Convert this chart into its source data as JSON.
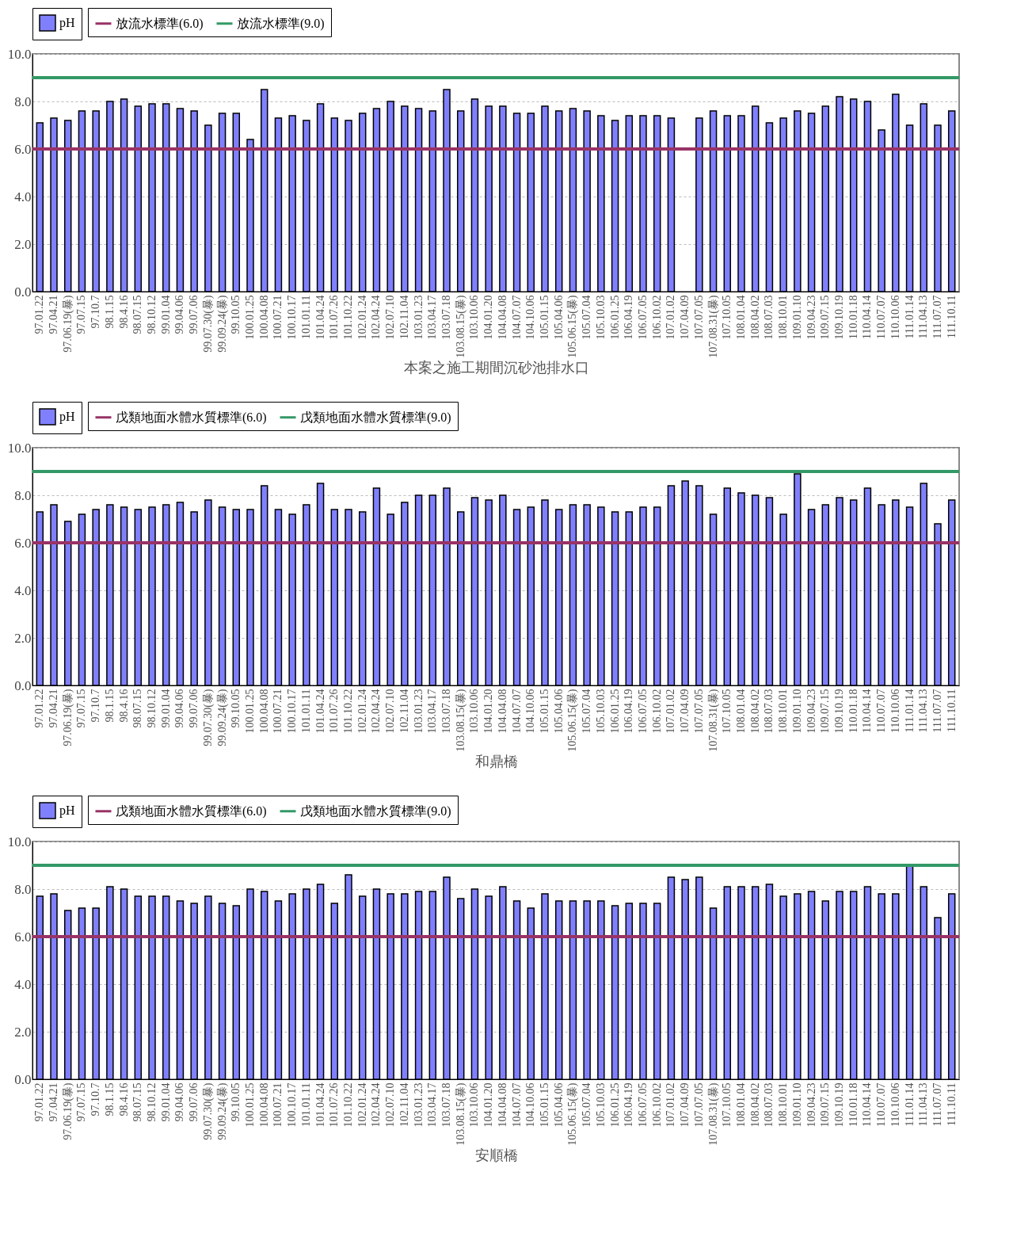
{
  "chart_data": [
    {
      "type": "bar",
      "xlabel": "本案之施工期間沉砂池排水口",
      "legend": "top",
      "grid": "y",
      "categories": [
        "97.01.22",
        "97.04.21",
        "97.06.19(暴)",
        "97.07.15",
        "97.10.7",
        "98.1.15",
        "98.4.16",
        "98.07.15",
        "98.10.12",
        "99.01.04",
        "99.04.06",
        "99.07.06",
        "99.07.30(暴)",
        "99.09.24(暴)",
        "99.10.05",
        "100.01.25",
        "100.04.08",
        "100.07.21",
        "100.10.17",
        "101.01.11",
        "101.04.24",
        "101.07.26",
        "101.10.22",
        "102.01.24",
        "102.04.24",
        "102.07.10",
        "102.11.04",
        "103.01.23",
        "103.04.17",
        "103.07.18",
        "103.08.15(暴)",
        "103.10.06",
        "104.01.20",
        "104.04.08",
        "104.07.07",
        "104.10.06",
        "105.01.15",
        "105.04.06",
        "105.06.15(暴)",
        "105.07.04",
        "105.10.03",
        "106.01.25",
        "106.04.19",
        "106.07.05",
        "106.10.02",
        "107.01.02",
        "107.04.09",
        "107.07.05",
        "107.08.31(暴)",
        "107.10.05",
        "108.01.04",
        "108.04.02",
        "108.07.03",
        "108.10.01",
        "109.01.10",
        "109.04.23",
        "109.07.15",
        "109.10.19",
        "110.01.18",
        "110.04.14",
        "110.07.07",
        "110.10.06",
        "111.01.14",
        "111.04.13",
        "111.07.07",
        "111.10.11"
      ],
      "series": [
        {
          "name": "pH",
          "color": "#8080ff",
          "values": [
            7.1,
            7.3,
            7.2,
            7.6,
            7.6,
            8.0,
            8.1,
            7.8,
            7.9,
            7.9,
            7.7,
            7.6,
            7.0,
            7.5,
            7.5,
            6.4,
            8.5,
            7.3,
            7.4,
            7.2,
            7.9,
            7.3,
            7.2,
            7.5,
            7.7,
            8.0,
            7.8,
            7.7,
            7.6,
            8.5,
            7.6,
            8.1,
            7.8,
            7.8,
            7.5,
            7.5,
            7.8,
            7.6,
            7.7,
            7.6,
            7.4,
            7.2,
            7.4,
            7.4,
            7.4,
            7.3,
            null,
            7.3,
            7.6,
            7.4,
            7.4,
            7.8,
            7.1,
            7.3,
            7.6,
            7.5,
            7.8,
            8.2,
            8.1,
            8.0,
            6.8,
            8.3,
            7.0,
            7.9,
            7.0,
            7.6
          ]
        }
      ],
      "ref_lines": [
        {
          "axis": "y",
          "value": 6.0,
          "label": "放流水標準(6.0)",
          "color": "#993366"
        },
        {
          "axis": "y",
          "value": 9.0,
          "label": "放流水標準(9.0)",
          "color": "#339966"
        }
      ],
      "ylim": [
        0,
        10
      ],
      "yticks": [
        {
          "value": 0,
          "label": "0.0"
        },
        {
          "value": 2,
          "label": "2.0"
        },
        {
          "value": 4,
          "label": "4.0"
        },
        {
          "value": 6,
          "label": "6.0"
        },
        {
          "value": 8,
          "label": "8.0"
        },
        {
          "value": 10,
          "label": "10.0"
        }
      ]
    },
    {
      "type": "bar",
      "xlabel": "和鼎橋",
      "legend": "top",
      "grid": "y",
      "categories": [
        "97.01.22",
        "97.04.21",
        "97.06.19(暴)",
        "97.07.15",
        "97.10.7",
        "98.1.15",
        "98.4.16",
        "98.07.15",
        "98.10.12",
        "99.01.04",
        "99.04.06",
        "99.07.06",
        "99.07.30(暴)",
        "99.09.24(暴)",
        "99.10.05",
        "100.01.25",
        "100.04.08",
        "100.07.21",
        "100.10.17",
        "101.01.11",
        "101.04.24",
        "101.07.26",
        "101.10.22",
        "102.01.24",
        "102.04.24",
        "102.07.10",
        "102.11.04",
        "103.01.23",
        "103.04.17",
        "103.07.18",
        "103.08.15(暴)",
        "103.10.06",
        "104.01.20",
        "104.04.08",
        "104.07.07",
        "104.10.06",
        "105.01.15",
        "105.04.06",
        "105.06.15(暴)",
        "105.07.04",
        "105.10.03",
        "106.01.25",
        "106.04.19",
        "106.07.05",
        "106.10.02",
        "107.01.02",
        "107.04.09",
        "107.07.05",
        "107.08.31(暴)",
        "107.10.05",
        "108.01.04",
        "108.04.02",
        "108.07.03",
        "108.10.01",
        "109.01.10",
        "109.04.23",
        "109.07.15",
        "109.10.19",
        "110.01.18",
        "110.04.14",
        "110.07.07",
        "110.10.06",
        "111.01.14",
        "111.04.13",
        "111.07.07",
        "111.10.11"
      ],
      "series": [
        {
          "name": "pH",
          "color": "#8080ff",
          "values": [
            7.3,
            7.6,
            6.9,
            7.2,
            7.4,
            7.6,
            7.5,
            7.4,
            7.5,
            7.6,
            7.7,
            7.3,
            7.8,
            7.5,
            7.4,
            7.4,
            8.4,
            7.4,
            7.2,
            7.6,
            8.5,
            7.4,
            7.4,
            7.3,
            8.3,
            7.2,
            7.7,
            8.0,
            8.0,
            8.3,
            7.3,
            7.9,
            7.8,
            8.0,
            7.4,
            7.5,
            7.8,
            7.4,
            7.6,
            7.6,
            7.5,
            7.3,
            7.3,
            7.5,
            7.5,
            8.4,
            8.6,
            8.4,
            7.2,
            8.3,
            8.1,
            8.0,
            7.9,
            7.2,
            8.9,
            7.4,
            7.6,
            7.9,
            7.8,
            8.3,
            7.6,
            7.8,
            7.5,
            8.5,
            6.8,
            7.8
          ]
        }
      ],
      "ref_lines": [
        {
          "axis": "y",
          "value": 6.0,
          "label": "戊類地面水體水質標準(6.0)",
          "color": "#993366"
        },
        {
          "axis": "y",
          "value": 9.0,
          "label": "戊類地面水體水質標準(9.0)",
          "color": "#339966"
        }
      ],
      "ylim": [
        0,
        10
      ],
      "yticks": [
        {
          "value": 0,
          "label": "0.0"
        },
        {
          "value": 2,
          "label": "2.0"
        },
        {
          "value": 4,
          "label": "4.0"
        },
        {
          "value": 6,
          "label": "6.0"
        },
        {
          "value": 8,
          "label": "8.0"
        },
        {
          "value": 10,
          "label": "10.0"
        }
      ]
    },
    {
      "type": "bar",
      "xlabel": "安順橋",
      "legend": "top",
      "grid": "y",
      "categories": [
        "97.01.22",
        "97.04.21",
        "97.06.19(暴)",
        "97.07.15",
        "97.10.7",
        "98.1.15",
        "98.4.16",
        "98.07.15",
        "98.10.12",
        "99.01.04",
        "99.04.06",
        "99.07.06",
        "99.07.30(暴)",
        "99.09.24(暴)",
        "99.10.05",
        "100.01.25",
        "100.04.08",
        "100.07.21",
        "100.10.17",
        "101.01.11",
        "101.04.24",
        "101.07.26",
        "101.10.22",
        "102.01.24",
        "102.04.24",
        "102.07.10",
        "102.11.04",
        "103.01.23",
        "103.04.17",
        "103.07.18",
        "103.08.15(暴)",
        "103.10.06",
        "104.01.20",
        "104.04.08",
        "104.07.07",
        "104.10.06",
        "105.01.15",
        "105.04.06",
        "105.06.15(暴)",
        "105.07.04",
        "105.10.03",
        "106.01.25",
        "106.04.19",
        "106.07.05",
        "106.10.02",
        "107.01.02",
        "107.04.09",
        "107.07.05",
        "107.08.31(暴)",
        "107.10.05",
        "108.01.04",
        "108.04.02",
        "108.07.03",
        "108.10.01",
        "109.01.10",
        "109.04.23",
        "109.07.15",
        "109.10.19",
        "110.01.18",
        "110.04.14",
        "110.07.07",
        "110.10.06",
        "111.01.14",
        "111.04.13",
        "111.07.07",
        "111.10.11"
      ],
      "series": [
        {
          "name": "pH",
          "color": "#8080ff",
          "values": [
            7.7,
            7.8,
            7.1,
            7.2,
            7.2,
            8.1,
            8.0,
            7.7,
            7.7,
            7.7,
            7.5,
            7.4,
            7.7,
            7.4,
            7.3,
            8.0,
            7.9,
            7.5,
            7.8,
            8.0,
            8.2,
            7.4,
            8.6,
            7.7,
            8.0,
            7.8,
            7.8,
            7.9,
            7.9,
            8.5,
            7.6,
            8.0,
            7.7,
            8.1,
            7.5,
            7.2,
            7.8,
            7.5,
            7.5,
            7.5,
            7.5,
            7.3,
            7.4,
            7.4,
            7.4,
            8.5,
            8.4,
            8.5,
            7.2,
            8.1,
            8.1,
            8.1,
            8.2,
            7.7,
            7.8,
            7.9,
            7.5,
            7.9,
            7.9,
            8.1,
            7.8,
            7.8,
            9.0,
            8.1,
            6.8,
            7.8
          ]
        }
      ],
      "ref_lines": [
        {
          "axis": "y",
          "value": 6.0,
          "label": "戊類地面水體水質標準(6.0)",
          "color": "#993366"
        },
        {
          "axis": "y",
          "value": 9.0,
          "label": "戊類地面水體水質標準(9.0)",
          "color": "#339966"
        }
      ],
      "ylim": [
        0,
        10
      ],
      "yticks": [
        {
          "value": 0,
          "label": "0.0"
        },
        {
          "value": 2,
          "label": "2.0"
        },
        {
          "value": 4,
          "label": "4.0"
        },
        {
          "value": 6,
          "label": "6.0"
        },
        {
          "value": 8,
          "label": "8.0"
        },
        {
          "value": 10,
          "label": "10.0"
        }
      ]
    }
  ]
}
